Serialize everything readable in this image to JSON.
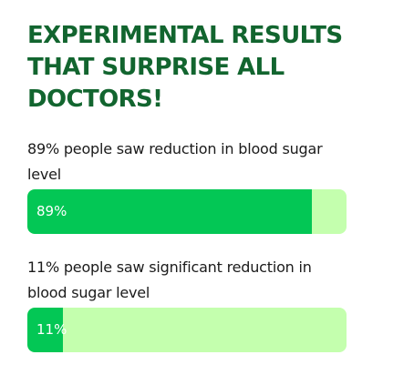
{
  "headline": "EXPERIMENTAL RESULTS THAT SURPRISE ALL DOCTORS!",
  "stats": [
    {
      "text": "89% people saw reduction in blood sugar level",
      "percent_label": "89%",
      "value": 89
    },
    {
      "text": "11% people saw significant reduction in blood sugar level",
      "percent_label": "11%",
      "value": 11
    }
  ],
  "colors": {
    "headline": "#12652f",
    "bar_fill": "#03c755",
    "bar_track": "#c4ffae",
    "body_text": "#1b1b1b"
  }
}
